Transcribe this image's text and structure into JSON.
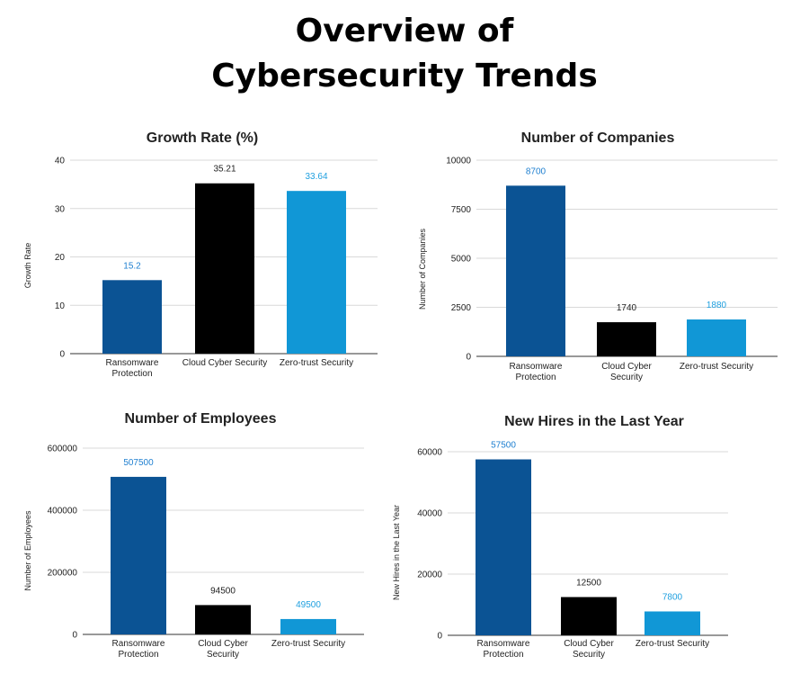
{
  "page": {
    "title_line1": "Overview of",
    "title_line2": "Cybersecurity Trends"
  },
  "chart_data": [
    {
      "type": "bar",
      "title": "Growth Rate (%)",
      "xlabel": "",
      "ylabel": "Growth Rate",
      "categories": [
        [
          "Ransomware",
          "Protection"
        ],
        [
          "Cloud Cyber Security"
        ],
        [
          "Zero-trust Security"
        ]
      ],
      "values": [
        15.2,
        35.21,
        33.64
      ],
      "value_labels": [
        "15.2",
        "35.21",
        "33.64"
      ],
      "ylim": [
        0,
        40
      ],
      "yticks": [
        0,
        10,
        20,
        30,
        40
      ],
      "grid": true,
      "colors": [
        "#0b5394",
        "#000000",
        "#1197d6"
      ],
      "label_colors": [
        "#1e7fd0",
        "#222222",
        "#1e9fdf"
      ]
    },
    {
      "type": "bar",
      "title": "Number of Companies",
      "xlabel": "",
      "ylabel": "Number of Companies",
      "categories": [
        [
          "Ransomware",
          "Protection"
        ],
        [
          "Cloud Cyber",
          "Security"
        ],
        [
          "Zero-trust Security"
        ]
      ],
      "values": [
        8700,
        1740,
        1880
      ],
      "value_labels": [
        "8700",
        "1740",
        "1880"
      ],
      "ylim": [
        0,
        10000
      ],
      "yticks": [
        0,
        2500,
        5000,
        7500,
        10000
      ],
      "grid": true,
      "colors": [
        "#0b5394",
        "#000000",
        "#1197d6"
      ],
      "label_colors": [
        "#1e7fd0",
        "#222222",
        "#1e9fdf"
      ]
    },
    {
      "type": "bar",
      "title": "Number of Employees",
      "xlabel": "",
      "ylabel": "Number of Employees",
      "categories": [
        [
          "Ransomware",
          "Protection"
        ],
        [
          "Cloud Cyber",
          "Security"
        ],
        [
          "Zero-trust Security"
        ]
      ],
      "values": [
        507500,
        94500,
        49500
      ],
      "value_labels": [
        "507500",
        "94500",
        "49500"
      ],
      "ylim": [
        0,
        600000
      ],
      "yticks": [
        0,
        200000,
        400000,
        600000
      ],
      "grid": true,
      "colors": [
        "#0b5394",
        "#000000",
        "#1197d6"
      ],
      "label_colors": [
        "#1e7fd0",
        "#222222",
        "#1e9fdf"
      ]
    },
    {
      "type": "bar",
      "title": "New Hires in the Last Year",
      "xlabel": "",
      "ylabel": "New Hires in the Last Year",
      "categories": [
        [
          "Ransomware",
          "Protection"
        ],
        [
          "Cloud Cyber",
          "Security"
        ],
        [
          "Zero-trust Security"
        ]
      ],
      "values": [
        57500,
        12500,
        7800
      ],
      "value_labels": [
        "57500",
        "12500",
        "7800"
      ],
      "ylim": [
        0,
        60000
      ],
      "yticks": [
        0,
        20000,
        40000,
        60000
      ],
      "grid": true,
      "colors": [
        "#0b5394",
        "#000000",
        "#1197d6"
      ],
      "label_colors": [
        "#1e7fd0",
        "#222222",
        "#1e9fdf"
      ]
    }
  ]
}
